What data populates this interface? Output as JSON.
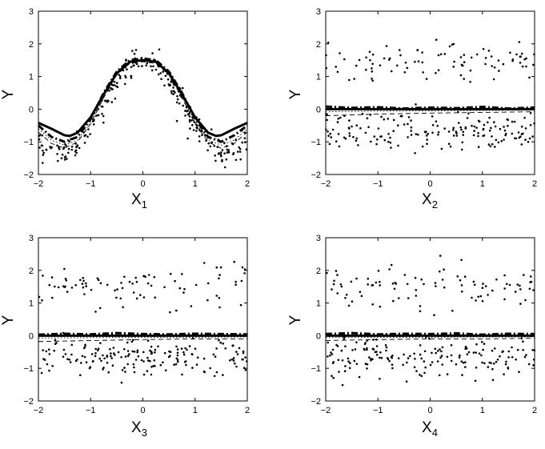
{
  "figure": {
    "panels": [
      {
        "xlabel_base": "X",
        "xlabel_sub": "1",
        "ylabel": "Y"
      },
      {
        "xlabel_base": "X",
        "xlabel_sub": "2",
        "ylabel": "Y"
      },
      {
        "xlabel_base": "X",
        "xlabel_sub": "3",
        "ylabel": "Y"
      },
      {
        "xlabel_base": "X",
        "xlabel_sub": "4",
        "ylabel": "Y"
      }
    ]
  },
  "chart_data": [
    {
      "type": "scatter",
      "xlabel": "X1",
      "ylabel": "Y",
      "xlim": [
        -2,
        2
      ],
      "ylim": [
        -2,
        3
      ],
      "xticks": [
        -2,
        -1,
        0,
        1,
        2
      ],
      "yticks": [
        -2,
        -1,
        0,
        1,
        2,
        3
      ],
      "grid": false,
      "scatter_pattern": "signal",
      "scatter_noise_sd": 0.2,
      "series": [
        {
          "style": "solid-thick",
          "x": [
            -2,
            -1.75,
            -1.5,
            -1.4,
            -1.25,
            -1,
            -0.75,
            -0.5,
            -0.25,
            0,
            0.25,
            0.5,
            0.75,
            1,
            1.25,
            1.4,
            1.5,
            1.75,
            2
          ],
          "y": [
            -0.42,
            -0.6,
            -0.8,
            -0.82,
            -0.72,
            -0.25,
            0.45,
            1.1,
            1.45,
            1.5,
            1.45,
            1.1,
            0.45,
            -0.25,
            -0.72,
            -0.82,
            -0.8,
            -0.6,
            -0.42
          ]
        },
        {
          "style": "dashdot-thick",
          "x": [
            -2,
            -1.75,
            -1.5,
            -1.25,
            -1,
            -0.75,
            -0.5,
            -0.25,
            0,
            0.25,
            0.5,
            0.75,
            1,
            1.25,
            1.5,
            1.75,
            2
          ],
          "y": [
            -0.5,
            -0.85,
            -1.0,
            -0.85,
            -0.3,
            0.5,
            1.15,
            1.5,
            1.55,
            1.5,
            1.15,
            0.5,
            -0.3,
            -0.85,
            -1.0,
            -0.8,
            -0.5
          ]
        },
        {
          "style": "dashed-thin",
          "x": [
            -2,
            -1.75,
            -1.5,
            -1.25,
            -1,
            -0.75,
            -0.5,
            -0.25,
            0,
            0.25,
            0.5,
            0.75,
            1,
            1.25,
            1.5,
            1.75,
            2
          ],
          "y": [
            -0.7,
            -1.05,
            -1.2,
            -1.0,
            -0.45,
            0.35,
            1.05,
            1.4,
            1.45,
            1.4,
            1.05,
            0.35,
            -0.45,
            -1.0,
            -1.2,
            -1.05,
            -0.7
          ]
        },
        {
          "style": "dotted-thin",
          "x": [
            -2,
            -1.75,
            -1.5,
            -1.25,
            -1,
            -0.75,
            -0.5,
            -0.25,
            0,
            0.25,
            0.5,
            0.75,
            1,
            1.25,
            1.5,
            1.75,
            2
          ],
          "y": [
            -0.6,
            -0.95,
            -1.1,
            -0.95,
            -0.4,
            0.4,
            1.1,
            1.45,
            1.5,
            1.45,
            1.1,
            0.4,
            -0.4,
            -0.95,
            -1.1,
            -0.95,
            -0.6
          ]
        }
      ]
    },
    {
      "type": "scatter",
      "xlabel": "X2",
      "ylabel": "Y",
      "xlim": [
        -2,
        2
      ],
      "ylim": [
        -2,
        3
      ],
      "xticks": [
        -2,
        -1,
        0,
        1,
        2
      ],
      "yticks": [
        -2,
        -1,
        0,
        1,
        2,
        3
      ],
      "grid": false,
      "scatter_pattern": "bimodal",
      "series": [
        {
          "style": "solid-thick",
          "x": [
            -2,
            2
          ],
          "y": [
            0,
            0
          ]
        },
        {
          "style": "dashdot-thick",
          "x": [
            -2,
            -1.5,
            -1,
            -0.5,
            0,
            0.5,
            1,
            1.5,
            2
          ],
          "y": [
            0.08,
            0.04,
            0.06,
            0.02,
            0.05,
            0.03,
            0.07,
            0.02,
            0.05
          ]
        },
        {
          "style": "dashed-thin",
          "x": [
            -2,
            -1,
            0,
            1,
            2
          ],
          "y": [
            -0.2,
            -0.15,
            -0.12,
            -0.1,
            -0.08
          ]
        },
        {
          "style": "dotted-thin",
          "x": [
            -2,
            -1,
            0,
            1,
            2
          ],
          "y": [
            -0.08,
            -0.06,
            -0.05,
            -0.04,
            -0.03
          ]
        }
      ]
    },
    {
      "type": "scatter",
      "xlabel": "X3",
      "ylabel": "Y",
      "xlim": [
        -2,
        2
      ],
      "ylim": [
        -2,
        3
      ],
      "xticks": [
        -2,
        -1,
        0,
        1,
        2
      ],
      "yticks": [
        -2,
        -1,
        0,
        1,
        2,
        3
      ],
      "grid": false,
      "scatter_pattern": "bimodal",
      "series": [
        {
          "style": "solid-thick",
          "x": [
            -2,
            2
          ],
          "y": [
            0,
            0
          ]
        },
        {
          "style": "dashdot-thick",
          "x": [
            -2,
            -1.5,
            -1,
            -0.5,
            0,
            0.5,
            1,
            1.5,
            2
          ],
          "y": [
            0.03,
            0.06,
            0.04,
            0.08,
            0.05,
            0.04,
            0.06,
            0.05,
            0.04
          ]
        },
        {
          "style": "dashed-thin",
          "x": [
            -2,
            -1,
            0,
            1,
            2
          ],
          "y": [
            -0.18,
            -0.15,
            -0.12,
            -0.1,
            -0.1
          ]
        },
        {
          "style": "dotted-thin",
          "x": [
            -2,
            -1,
            0,
            1,
            2
          ],
          "y": [
            -0.07,
            -0.06,
            -0.05,
            -0.05,
            -0.04
          ]
        }
      ]
    },
    {
      "type": "scatter",
      "xlabel": "X4",
      "ylabel": "Y",
      "xlim": [
        -2,
        2
      ],
      "ylim": [
        -2,
        3
      ],
      "xticks": [
        -2,
        -1,
        0,
        1,
        2
      ],
      "yticks": [
        -2,
        -1,
        0,
        1,
        2,
        3
      ],
      "grid": false,
      "scatter_pattern": "bimodal",
      "series": [
        {
          "style": "solid-thick",
          "x": [
            -2,
            2
          ],
          "y": [
            0,
            0
          ]
        },
        {
          "style": "dashdot-thick",
          "x": [
            -2,
            -1.5,
            -1,
            -0.5,
            0,
            0.5,
            1,
            1.5,
            2
          ],
          "y": [
            0.05,
            0.08,
            0.04,
            0.06,
            0.05,
            0.07,
            0.03,
            0.06,
            0.05
          ]
        },
        {
          "style": "dashed-thin",
          "x": [
            -2,
            -1,
            0,
            1,
            2
          ],
          "y": [
            -0.15,
            -0.12,
            -0.1,
            -0.1,
            -0.08
          ]
        },
        {
          "style": "dotted-thin",
          "x": [
            -2,
            -1,
            0,
            1,
            2
          ],
          "y": [
            -0.06,
            -0.05,
            -0.05,
            -0.04,
            -0.04
          ]
        }
      ]
    }
  ]
}
